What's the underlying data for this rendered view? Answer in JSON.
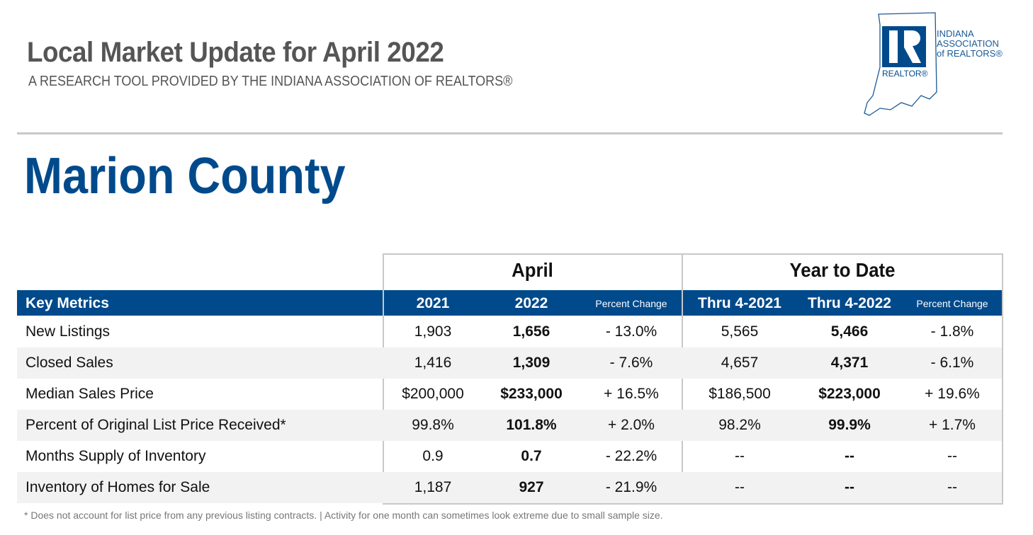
{
  "header": {
    "title": "Local Market Update for April 2022",
    "subtitle": "A RESEARCH TOOL PROVIDED BY THE INDIANA ASSOCIATION OF REALTORS®",
    "logo_text": [
      "INDIANA",
      "ASSOCIATION",
      "of REALTORS®"
    ],
    "logo_mark": "REALTOR®"
  },
  "county": "Marion County",
  "table": {
    "groups": [
      "April",
      "Year to Date"
    ],
    "columns": [
      "Key Metrics",
      "2021",
      "2022",
      "Percent Change",
      "Thru 4-2021",
      "Thru 4-2022",
      "Percent Change"
    ],
    "rows": [
      [
        "New Listings",
        "1,903",
        "1,656",
        "- 13.0%",
        "5,565",
        "5,466",
        "- 1.8%"
      ],
      [
        "Closed Sales",
        "1,416",
        "1,309",
        "- 7.6%",
        "4,657",
        "4,371",
        "- 6.1%"
      ],
      [
        "Median Sales Price",
        "$200,000",
        "$233,000",
        "+ 16.5%",
        "$186,500",
        "$223,000",
        "+ 19.6%"
      ],
      [
        "Percent of Original List Price Received*",
        "99.8%",
        "101.8%",
        "+ 2.0%",
        "98.2%",
        "99.9%",
        "+ 1.7%"
      ],
      [
        "Months Supply of Inventory",
        "0.9",
        "0.7",
        "- 22.2%",
        "--",
        "--",
        "--"
      ],
      [
        "Inventory of Homes for Sale",
        "1,187",
        "927",
        "- 21.9%",
        "--",
        "--",
        "--"
      ]
    ]
  },
  "footnote": "* Does not account for list price from any previous listing contracts.  |  Activity for one month can sometimes look extreme due to small sample size.",
  "colors": {
    "brand_blue": "#004a8c",
    "title_gray": "#555555"
  }
}
